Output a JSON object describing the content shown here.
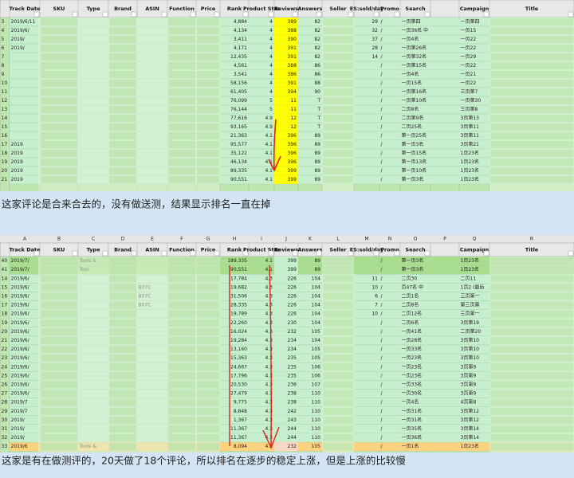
{
  "tables": [
    {
      "columns": [
        null,
        "Track Date",
        "SKU",
        "Type",
        "Brand",
        "ASIN",
        "Function",
        "Price",
        "Rank",
        "Product Star",
        "Reviews",
        "Answers",
        "Seller",
        "ES:sold/day",
        "Promo",
        "Search",
        null,
        "Campaign",
        "Title"
      ],
      "rows": [
        [
          "3",
          "2019/6/11",
          null,
          null,
          null,
          null,
          null,
          null,
          "4,884",
          "4",
          "389",
          "82",
          null,
          "29",
          "/",
          "一页第四",
          null,
          "一页第四",
          null
        ],
        [
          "4",
          "2019/6/",
          null,
          null,
          null,
          null,
          null,
          null,
          "4,134",
          "4",
          "388",
          "82",
          null,
          "32",
          "/",
          "一页36名 中",
          null,
          "一页15",
          null
        ],
        [
          "5",
          "2019/",
          null,
          null,
          null,
          null,
          null,
          null,
          "3,411",
          "4",
          "390",
          "82",
          null,
          "37",
          "/",
          "一页4名",
          null,
          "一页22",
          null
        ],
        [
          "6",
          "2019/",
          null,
          null,
          null,
          null,
          null,
          null,
          "4,171",
          "4",
          "391",
          "82",
          null,
          "28",
          "/",
          "一页第26名",
          null,
          "一页22",
          null
        ],
        [
          "7",
          null,
          null,
          null,
          null,
          null,
          null,
          null,
          "12,435",
          "4",
          "391",
          "82",
          null,
          "14",
          "/",
          "一页第32名",
          null,
          "一页29",
          null
        ],
        [
          "8",
          null,
          null,
          null,
          null,
          null,
          null,
          null,
          "4,561",
          "4",
          "388",
          "86",
          null,
          null,
          "/",
          "一页第15名",
          null,
          "一页22",
          null
        ],
        [
          "9",
          null,
          null,
          null,
          null,
          null,
          null,
          null,
          "3,541",
          "4",
          "386",
          "86",
          null,
          null,
          "/",
          "一页4名",
          null,
          "一页21",
          null
        ],
        [
          "10",
          null,
          null,
          null,
          null,
          null,
          null,
          null,
          "58,156",
          "4",
          "391",
          "88",
          null,
          null,
          "/",
          "一页15名",
          null,
          "一页22",
          null
        ],
        [
          "11",
          null,
          null,
          null,
          null,
          null,
          null,
          null,
          "61,405",
          "4",
          "394",
          "90",
          null,
          null,
          "/",
          "一页第16名",
          null,
          "三页第7",
          null
        ],
        [
          "12",
          null,
          null,
          null,
          null,
          null,
          null,
          null,
          "76,099",
          "5",
          "11",
          "T",
          null,
          null,
          "/",
          "一页第10名",
          null,
          "一页第30",
          null
        ],
        [
          "13",
          null,
          null,
          null,
          null,
          null,
          null,
          null,
          "76,144",
          "5",
          "11",
          "T",
          null,
          null,
          "/",
          "二页8名",
          null,
          "三页第8",
          null
        ],
        [
          "14",
          null,
          null,
          null,
          null,
          null,
          null,
          null,
          "77,616",
          "4.9",
          "12",
          "T",
          null,
          null,
          "/",
          "二页第9名",
          null,
          "3页第13",
          null
        ],
        [
          "15",
          null,
          null,
          null,
          null,
          null,
          null,
          null,
          "93,165",
          "4.9",
          "12",
          "T",
          null,
          null,
          "/",
          "二页25名",
          null,
          "3页第11",
          null
        ],
        [
          "16",
          null,
          null,
          null,
          null,
          null,
          null,
          null,
          "21,363",
          "4.1",
          "396",
          "89",
          null,
          null,
          "/",
          "第一页25名",
          null,
          "3页第11",
          null
        ],
        [
          "17",
          "2019",
          null,
          null,
          null,
          null,
          null,
          null,
          "95,577",
          "4.1",
          "396",
          "89",
          null,
          null,
          "/",
          "第一页3名",
          null,
          "3页第21",
          null
        ],
        [
          "18",
          "2019",
          null,
          null,
          null,
          null,
          null,
          null,
          "35,122",
          "4.1",
          "396",
          "89",
          null,
          null,
          "/",
          "第一页15名",
          null,
          "1页23名",
          null
        ],
        [
          "19",
          "2019",
          null,
          null,
          null,
          null,
          null,
          null,
          "46,134",
          "4.1",
          "396",
          "89",
          null,
          null,
          "/",
          "第一页13名",
          null,
          "1页23名",
          null
        ],
        [
          "20",
          "2019",
          null,
          null,
          null,
          null,
          null,
          null,
          "89,335",
          "4.1",
          "399",
          "89",
          null,
          null,
          "/",
          "第一页10名",
          null,
          "1页23名",
          null
        ],
        [
          "21",
          "2019",
          null,
          null,
          null,
          null,
          null,
          null,
          "90,551",
          "4.1",
          "399",
          "89",
          null,
          null,
          "/",
          "第一页3名",
          null,
          "1页23名",
          null
        ]
      ],
      "caption": "这家评论是合来合去的，没有做送测，结果显示排名一直在掉"
    },
    {
      "letters": [
        null,
        "A",
        "B",
        "C",
        "D",
        "E",
        "F",
        "G",
        "H",
        "I",
        "J",
        "K",
        "L",
        "M",
        "N",
        "O",
        "P",
        "Q",
        "R"
      ],
      "columns": [
        null,
        "Track Date",
        "SKU",
        "Type",
        "Brand",
        "ASIN",
        "Function",
        "Price",
        "Rank",
        "Product Star",
        "Reviews",
        "Answers",
        "Seller",
        "ES:sold/day",
        "Promo",
        "Search",
        null,
        "Campaign",
        "Title"
      ],
      "rows": [
        [
          "40",
          "2019/7/",
          null,
          "Tools &",
          null,
          null,
          null,
          null,
          "189,335",
          "4.1",
          "399",
          "89",
          null,
          null,
          "/",
          "第一页3名",
          null,
          "1页23名",
          null
        ],
        [
          "41",
          "2019/7/",
          null,
          "Tool",
          null,
          null,
          null,
          null,
          "90,551",
          "4.1",
          "399",
          "89",
          null,
          null,
          "/",
          "第一页3名",
          null,
          "1页23名",
          null
        ],
        [
          "14",
          "2019/6/",
          null,
          null,
          null,
          null,
          null,
          null,
          "17,784",
          "4.3",
          "226",
          "104",
          null,
          "11",
          "/",
          "二页30",
          null,
          "二页11",
          null
        ],
        [
          "15",
          "2019/6/",
          null,
          null,
          null,
          "B07C",
          null,
          null,
          "19,682",
          "4.3",
          "226",
          "104",
          null,
          "10",
          "/",
          "页47名 中",
          null,
          "1页2 (最后",
          null
        ],
        [
          "16",
          "2019/6/",
          null,
          null,
          null,
          "B07C",
          null,
          null,
          "31,506",
          "4.3",
          "226",
          "104",
          null,
          "6",
          "/",
          "二页1名",
          null,
          "三页第一",
          null
        ],
        [
          "17",
          "2019/6/",
          null,
          null,
          null,
          "B07C",
          null,
          null,
          "28,335",
          "4.3",
          "226",
          "104",
          null,
          "7",
          "/",
          "二页8名",
          null,
          "第三页第",
          null
        ],
        [
          "18",
          "2019/6/",
          null,
          null,
          null,
          null,
          null,
          null,
          "19,789",
          "4.3",
          "226",
          "104",
          null,
          "10",
          "/",
          "二页12名",
          null,
          "三页第一",
          null
        ],
        [
          "19",
          "2019/6/",
          null,
          null,
          null,
          null,
          null,
          null,
          "22,260",
          "4.3",
          "230",
          "104",
          null,
          null,
          "/",
          "二页6名",
          null,
          "3页第19",
          null
        ],
        [
          "20",
          "2019/6/",
          null,
          null,
          null,
          null,
          null,
          null,
          "16,024",
          "4.3",
          "232",
          "105",
          null,
          null,
          "/",
          "一页41名",
          null,
          "二页第20",
          null
        ],
        [
          "21",
          "2019/6/",
          null,
          null,
          null,
          null,
          null,
          null,
          "19,284",
          "4.3",
          "234",
          "104",
          null,
          null,
          "/",
          "一页28名",
          null,
          "3页第10",
          null
        ],
        [
          "22",
          "2019/6/",
          null,
          null,
          null,
          null,
          null,
          null,
          "13,160",
          "4.3",
          "234",
          "105",
          null,
          null,
          "/",
          "一页33名",
          null,
          "3页第10",
          null
        ],
        [
          "23",
          "2019/6/",
          null,
          null,
          null,
          null,
          null,
          null,
          "15,363",
          "4.3",
          "235",
          "105",
          null,
          null,
          "/",
          "一页23名",
          null,
          "3页第10",
          null
        ],
        [
          "24",
          "2019/6/",
          null,
          null,
          null,
          null,
          null,
          null,
          "24,667",
          "4.3",
          "235",
          "106",
          null,
          null,
          "/",
          "一页23名",
          null,
          "3页第9",
          null
        ],
        [
          "25",
          "2019/6/",
          null,
          null,
          null,
          null,
          null,
          null,
          "17,796",
          "4.3",
          "235",
          "106",
          null,
          null,
          "/",
          "一页23名",
          null,
          "3页第9",
          null
        ],
        [
          "26",
          "2019/6/",
          null,
          null,
          null,
          null,
          null,
          null,
          "20,530",
          "4.3",
          "236",
          "107",
          null,
          null,
          "/",
          "一页33名",
          null,
          "3页第9",
          null
        ],
        [
          "27",
          "2019/6/",
          null,
          null,
          null,
          null,
          null,
          null,
          "27,479",
          "4.3",
          "238",
          "110",
          null,
          null,
          "/",
          "一页30名",
          null,
          "3页第9",
          null
        ],
        [
          "28",
          "2019/7",
          null,
          null,
          null,
          null,
          null,
          null,
          "9,775",
          "4.3",
          "238",
          "110",
          null,
          null,
          "/",
          "一页4名",
          null,
          "4页第8",
          null
        ],
        [
          "29",
          "2019/7",
          null,
          null,
          null,
          null,
          null,
          null,
          "8,848",
          "4.3",
          "242",
          "110",
          null,
          null,
          "/",
          "一页31名",
          null,
          "3页第12",
          null
        ],
        [
          "30",
          "2019/",
          null,
          null,
          null,
          null,
          null,
          null,
          "1,367",
          "4.3",
          "243",
          "110",
          null,
          null,
          "/",
          "一页31名",
          null,
          "3页第12",
          null
        ],
        [
          "31",
          "2019/",
          null,
          null,
          null,
          null,
          null,
          null,
          "11,367",
          "4.3",
          "244",
          "110",
          null,
          null,
          "/",
          "一页35名",
          null,
          "3页第14",
          null
        ],
        [
          "32",
          "2019/",
          null,
          null,
          null,
          null,
          null,
          null,
          "11,367",
          "4.3",
          "244",
          "110",
          null,
          null,
          "/",
          "一页36名",
          null,
          "3页第14",
          null
        ],
        [
          "33",
          "2019/6",
          null,
          "Tools &",
          null,
          null,
          null,
          null,
          "8,094",
          "4.3",
          "232",
          "105",
          null,
          null,
          "/",
          "一页1名",
          null,
          "1页23名",
          null
        ]
      ],
      "caption": "这家是有在做测评的，20天做了18个评论，所以排名在逐步的稳定上涨，但是上涨的比较慢"
    }
  ]
}
